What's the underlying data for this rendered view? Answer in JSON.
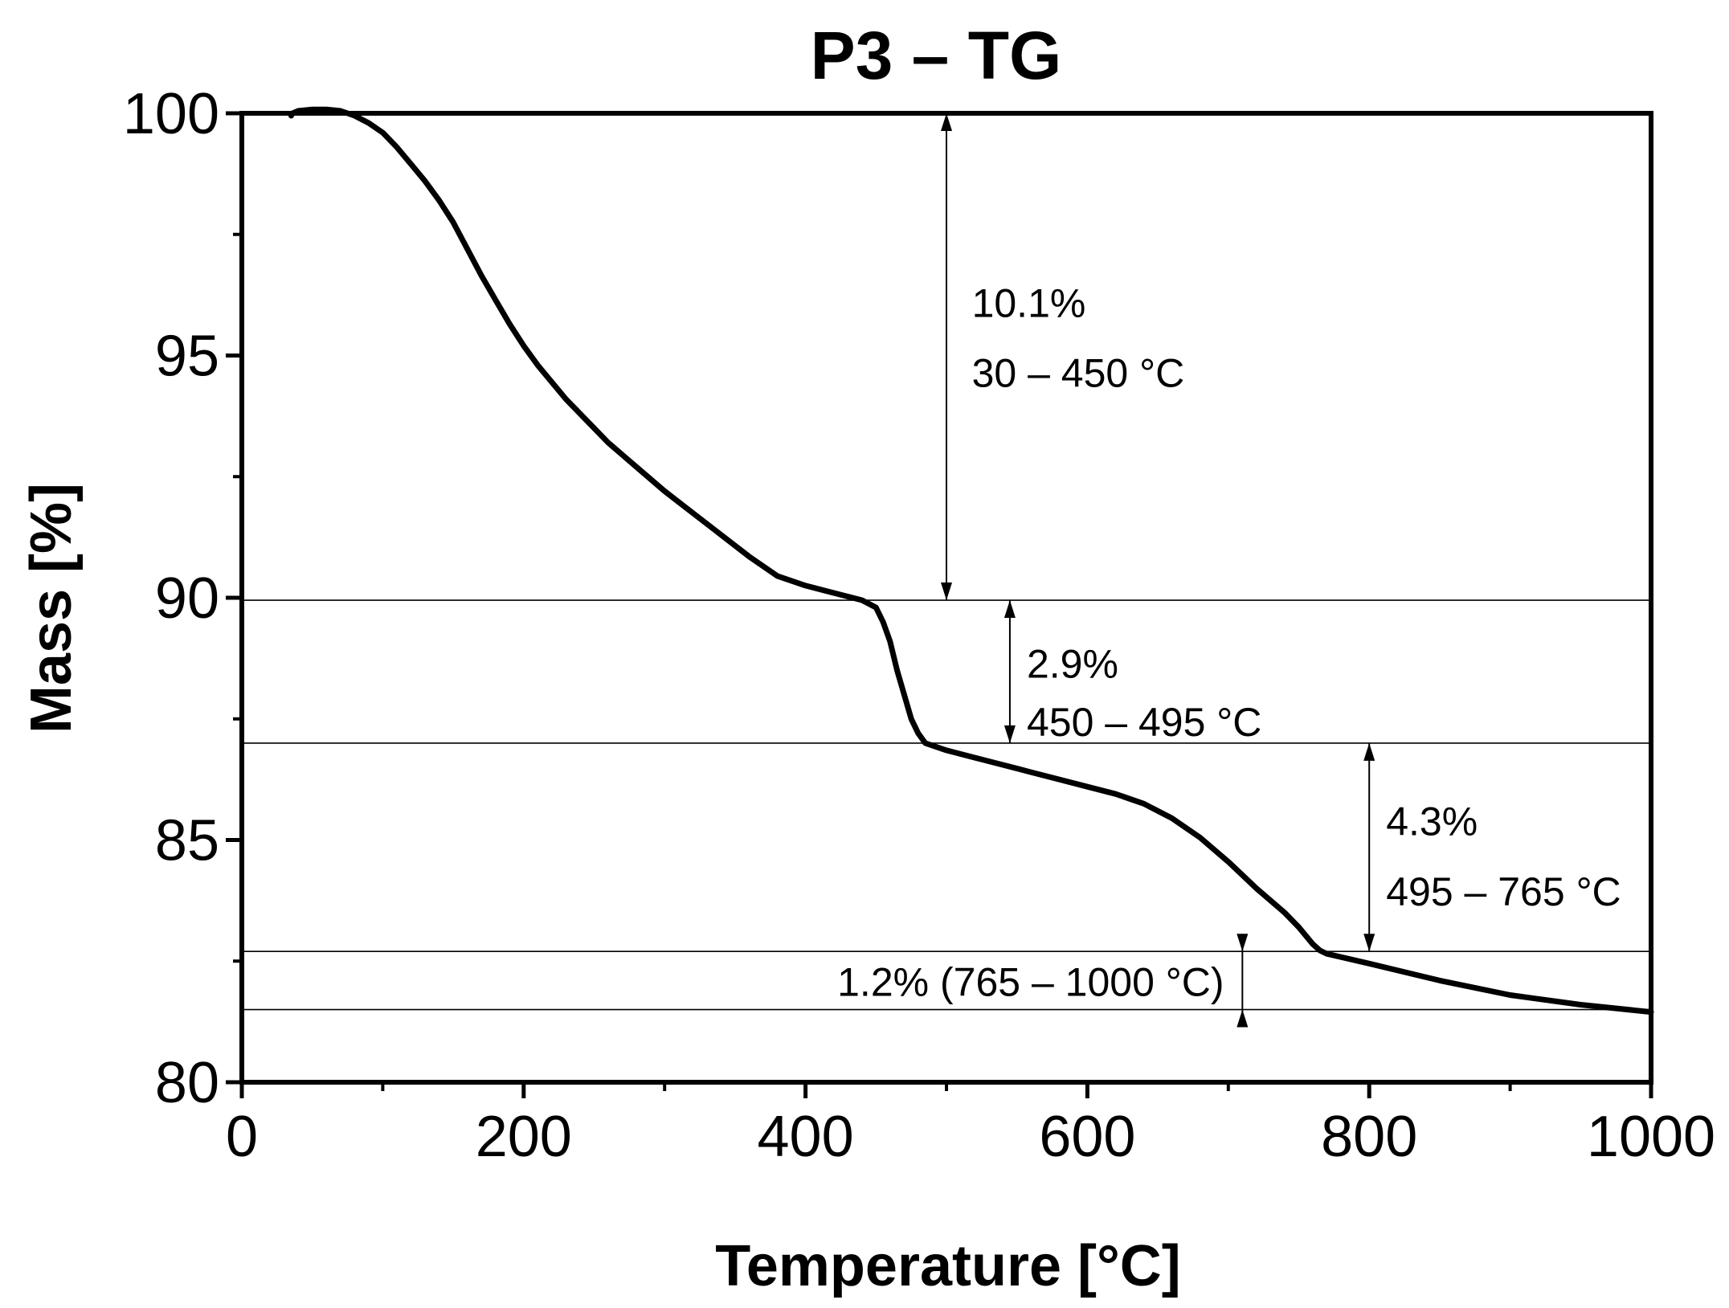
{
  "chart_data": {
    "type": "line",
    "title": "P3 – TG",
    "xlabel": "Temperature [°C]",
    "ylabel": "Mass [%]",
    "xlim": [
      0,
      1000
    ],
    "ylim": [
      80,
      100
    ],
    "x_ticks": [
      0,
      200,
      400,
      600,
      800,
      1000
    ],
    "x_tick_labels": [
      "0",
      "200",
      "400",
      "600",
      "800",
      "1000"
    ],
    "y_ticks": [
      80,
      85,
      90,
      95,
      100
    ],
    "y_tick_labels": [
      "80",
      "85",
      "90",
      "95",
      "100"
    ],
    "x_minor_step": 100,
    "y_minor_step": 2.5,
    "grid": false,
    "series": [
      {
        "name": "P3 TG",
        "color": "#000000",
        "x": [
          35,
          36,
          40,
          50,
          60,
          70,
          80,
          90,
          100,
          110,
          120,
          130,
          140,
          150,
          160,
          170,
          180,
          190,
          200,
          210,
          220,
          230,
          240,
          250,
          260,
          270,
          280,
          290,
          300,
          320,
          340,
          360,
          380,
          400,
          420,
          440,
          450,
          455,
          460,
          465,
          470,
          475,
          480,
          485,
          490,
          500,
          520,
          540,
          560,
          580,
          600,
          620,
          640,
          660,
          680,
          700,
          720,
          740,
          750,
          760,
          765,
          770,
          800,
          850,
          900,
          950,
          1000
        ],
        "y": [
          99.95,
          100.0,
          100.05,
          100.08,
          100.08,
          100.05,
          99.95,
          99.8,
          99.6,
          99.3,
          98.95,
          98.6,
          98.2,
          97.75,
          97.2,
          96.65,
          96.15,
          95.65,
          95.2,
          94.8,
          94.45,
          94.1,
          93.8,
          93.5,
          93.2,
          92.95,
          92.7,
          92.45,
          92.2,
          91.75,
          91.3,
          90.85,
          90.45,
          90.25,
          90.1,
          89.95,
          89.8,
          89.5,
          89.1,
          88.5,
          88.0,
          87.5,
          87.2,
          87.0,
          86.95,
          86.85,
          86.7,
          86.55,
          86.4,
          86.25,
          86.1,
          85.95,
          85.75,
          85.45,
          85.05,
          84.55,
          84.0,
          83.5,
          83.2,
          82.85,
          82.72,
          82.65,
          82.45,
          82.1,
          81.8,
          81.6,
          81.45
        ]
      }
    ],
    "reference_lines": [
      {
        "name": "level-90",
        "y": 89.95
      },
      {
        "name": "level-87",
        "y": 87.0
      },
      {
        "name": "level-82.7",
        "y": 82.7
      },
      {
        "name": "level-81.5",
        "y": 81.5
      }
    ],
    "arrows": [
      {
        "name": "arrow-10-1",
        "x": 500,
        "y_top": 100.0,
        "y_bottom": 89.95
      },
      {
        "name": "arrow-2-9",
        "x": 545,
        "y_top": 89.95,
        "y_bottom": 87.0
      },
      {
        "name": "arrow-4-3",
        "x": 800,
        "y_top": 87.0,
        "y_bottom": 82.7
      },
      {
        "name": "arrow-1-2",
        "x": 710,
        "y_top": 82.7,
        "y_bottom": 81.5,
        "style": "outside"
      }
    ],
    "annotations": [
      {
        "name": "annot-10-1-pct",
        "text": "10.1%",
        "x": 518,
        "y": 95.8,
        "anchor": "start"
      },
      {
        "name": "annot-10-1-range",
        "text": "30 – 450 °C",
        "x": 518,
        "y": 94.35,
        "anchor": "start"
      },
      {
        "name": "annot-2-9-pct",
        "text": "2.9%",
        "x": 557,
        "y": 88.35,
        "anchor": "start"
      },
      {
        "name": "annot-2-9-range",
        "text": "450 – 495 °C",
        "x": 557,
        "y": 87.15,
        "anchor": "start"
      },
      {
        "name": "annot-4-3-pct",
        "text": "4.3%",
        "x": 812,
        "y": 85.1,
        "anchor": "start"
      },
      {
        "name": "annot-4-3-range",
        "text": "495 – 765 °C",
        "x": 812,
        "y": 83.65,
        "anchor": "start"
      },
      {
        "name": "annot-1-2",
        "text": "1.2% (765 – 1000 °C)",
        "x": 697,
        "y": 81.78,
        "anchor": "end"
      }
    ]
  }
}
